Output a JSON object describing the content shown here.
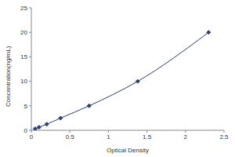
{
  "chart_data": {
    "type": "line",
    "x_label": "Optical Density",
    "y_label": "Concentration(ng/mL)",
    "x": [
      0.05,
      0.1,
      0.2,
      0.38,
      0.75,
      1.38,
      2.3
    ],
    "values": [
      0.31,
      0.625,
      1.25,
      2.5,
      5,
      10,
      20
    ],
    "color": "#2b3f73",
    "marker": "diamond",
    "xlim": [
      0,
      2.5
    ],
    "xticks": [
      0,
      0.5,
      1,
      1.5,
      2,
      2.5
    ],
    "ylim": [
      0,
      25
    ],
    "yticks": [
      0,
      5,
      10,
      15,
      20,
      25
    ],
    "grid": false
  }
}
